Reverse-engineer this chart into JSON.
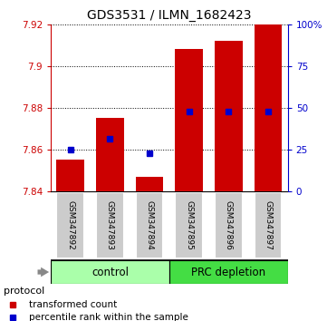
{
  "title": "GDS3531 / ILMN_1682423",
  "samples": [
    "GSM347892",
    "GSM347893",
    "GSM347894",
    "GSM347895",
    "GSM347896",
    "GSM347897"
  ],
  "bar_bottoms": [
    7.84,
    7.84,
    7.84,
    7.84,
    7.84,
    7.84
  ],
  "bar_tops": [
    7.855,
    7.875,
    7.847,
    7.908,
    7.912,
    7.92
  ],
  "blue_y": [
    7.86,
    7.865,
    7.858,
    7.878,
    7.878,
    7.878
  ],
  "bar_color": "#cc0000",
  "blue_color": "#0000cc",
  "ylim_left": [
    7.84,
    7.92
  ],
  "ylim_right": [
    0,
    100
  ],
  "yticks_left": [
    7.84,
    7.86,
    7.88,
    7.9,
    7.92
  ],
  "ytick_labels_left": [
    "7.84",
    "7.86",
    "7.88",
    "7.9",
    "7.92"
  ],
  "yticks_right": [
    0,
    25,
    50,
    75,
    100
  ],
  "ytick_labels_right": [
    "0",
    "25",
    "50",
    "75",
    "100%"
  ],
  "groups": [
    {
      "label": "control",
      "color": "#aaffaa"
    },
    {
      "label": "PRC depletion",
      "color": "#44dd44"
    }
  ],
  "protocol_label": "protocol",
  "legend_items": [
    {
      "label": "transformed count",
      "color": "#cc0000"
    },
    {
      "label": "percentile rank within the sample",
      "color": "#0000cc"
    }
  ],
  "bar_width": 0.7,
  "sample_box_color": "#cccccc",
  "sample_box_edge": "#ffffff",
  "title_fontsize": 10
}
